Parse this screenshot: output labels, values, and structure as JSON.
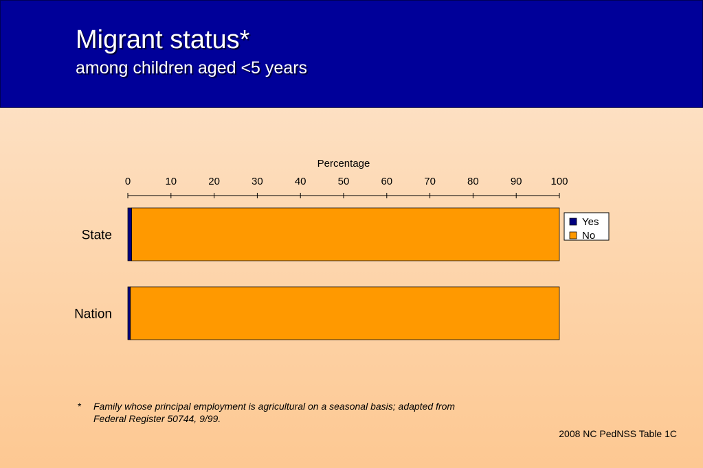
{
  "slide": {
    "title": "Migrant status*",
    "subtitle": "among children aged <5 years",
    "footnote_marker": "*",
    "footnote_line1": "Family whose principal employment is agricultural on a seasonal basis; adapted from",
    "footnote_line2": "Federal Register  50744, 9/99.",
    "source": "2008 NC PedNSS Table 1C",
    "banner_color": "#000099"
  },
  "chart_data": {
    "type": "bar",
    "orientation": "horizontal",
    "stacked": true,
    "xlabel": "Percentage",
    "xlim": [
      0,
      100
    ],
    "xticks": [
      0,
      10,
      20,
      30,
      40,
      50,
      60,
      70,
      80,
      90,
      100
    ],
    "x_axis_position": "top",
    "categories": [
      "State",
      "Nation"
    ],
    "series": [
      {
        "name": "Yes",
        "color": "#000080",
        "values": [
          0.9,
          0.6
        ]
      },
      {
        "name": "No",
        "color": "#ff9900",
        "values": [
          99.1,
          99.4
        ]
      }
    ],
    "legend_position": "right",
    "grid": false
  }
}
